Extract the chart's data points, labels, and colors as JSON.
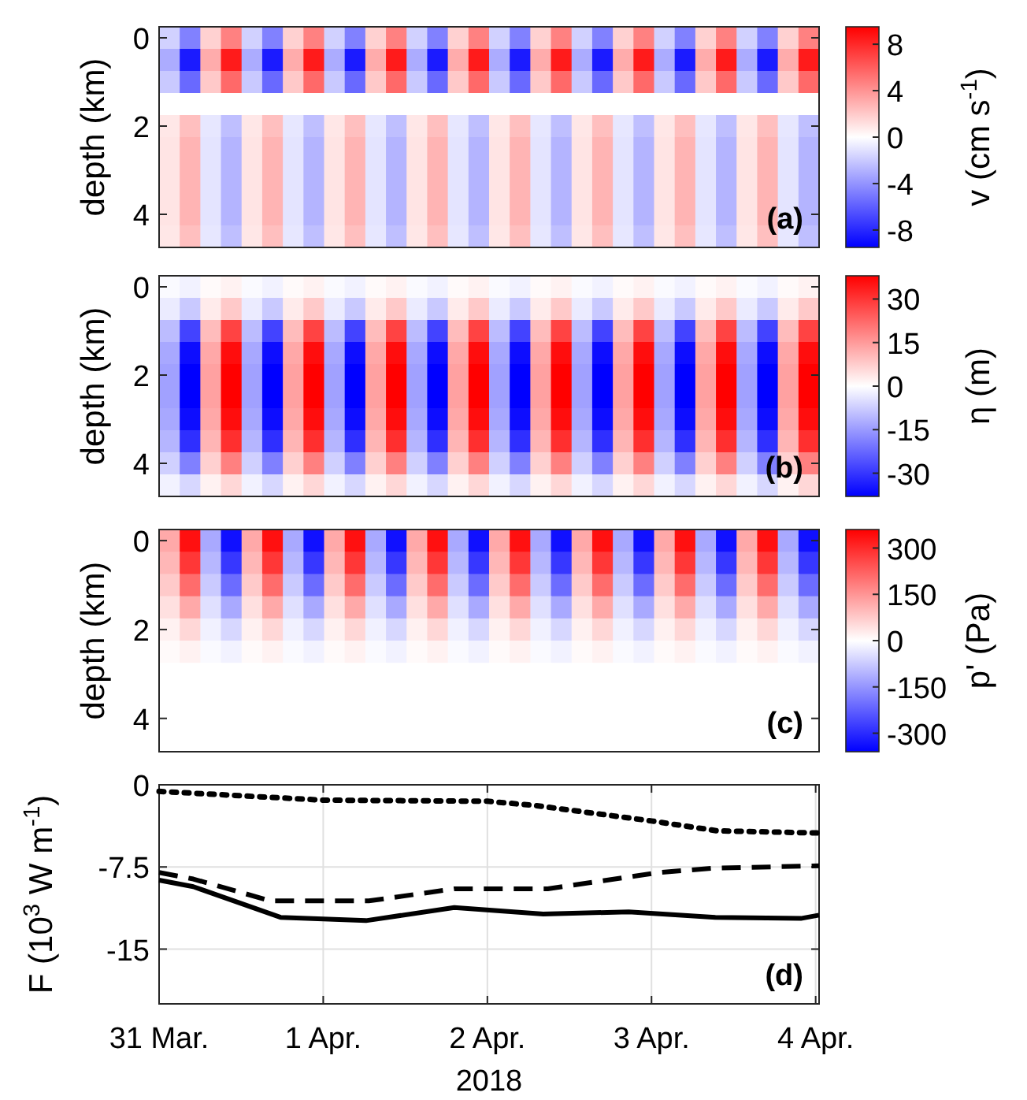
{
  "chart_data": [
    {
      "type": "heatmap",
      "ylabel": "depth (km)",
      "clabel": "v (cm s$^{-1}$)",
      "annotations": [
        "(a)"
      ],
      "categories": [
        null,
        null,
        null,
        null,
        null,
        null,
        null,
        null,
        null,
        null,
        null,
        null,
        null,
        null,
        null,
        null,
        null,
        null,
        null,
        null,
        null,
        null,
        null,
        null,
        null,
        null,
        null,
        null,
        null,
        null,
        null,
        null
      ],
      "y_categories": [
        "0",
        null,
        null,
        null,
        "2",
        null,
        null,
        null,
        "4",
        null
      ],
      "clim": [
        -9.5,
        9.5
      ],
      "cticks": [
        -8,
        -4,
        0,
        4,
        8
      ],
      "colors": [
        "#0000ff",
        "#ffffff",
        "#ff0000"
      ],
      "cells": [
        [
          -1.7,
          -4.7,
          1.7,
          4.7,
          -1.7,
          -4.7,
          1.7,
          4.7,
          -1.7,
          -4.7,
          1.7,
          4.7,
          -1.7,
          -4.7,
          1.7,
          4.7,
          -1.7,
          -4.7,
          1.7,
          4.7,
          -1.7,
          -4.7,
          1.7,
          4.7,
          -1.7,
          -4.7,
          1.7,
          4.7,
          -1.7,
          -4.7,
          1.7,
          4.7
        ],
        [
          -3.1,
          -8.5,
          3.1,
          8.5,
          -3.1,
          -8.5,
          3.1,
          8.5,
          -3.1,
          -8.5,
          3.1,
          8.5,
          -3.1,
          -8.5,
          3.1,
          8.5,
          -3.1,
          -8.5,
          3.1,
          8.5,
          -3.1,
          -8.5,
          3.1,
          8.5,
          -3.1,
          -8.5,
          3.1,
          8.5,
          -3.1,
          -8.5,
          3.1,
          8.5
        ],
        [
          -2,
          -5.6,
          2,
          5.6,
          -2,
          -5.6,
          2,
          5.6,
          -2,
          -5.6,
          2,
          5.6,
          -2,
          -5.6,
          2,
          5.6,
          -2,
          -5.6,
          2,
          5.6,
          -2,
          -5.6,
          2,
          5.6,
          -2,
          -5.6,
          2,
          5.6,
          -2,
          -5.6,
          2,
          5.6
        ],
        [
          0,
          0,
          0,
          0,
          0,
          0,
          0,
          0,
          0,
          0,
          0,
          0,
          0,
          0,
          0,
          0,
          0,
          0,
          0,
          0,
          0,
          0,
          0,
          0,
          0,
          0,
          0,
          0,
          0,
          0,
          0,
          0
        ],
        [
          0.9,
          2.4,
          -0.9,
          -2.4,
          0.9,
          2.4,
          -0.9,
          -2.4,
          0.9,
          2.4,
          -0.9,
          -2.4,
          0.9,
          2.4,
          -0.9,
          -2.4,
          0.9,
          2.4,
          -0.9,
          -2.4,
          0.9,
          2.4,
          -0.9,
          -2.4,
          0.9,
          2.4,
          -0.9,
          -2.4,
          0.9,
          2.4,
          -0.9,
          -2.4
        ],
        [
          1,
          2.8,
          -1,
          -2.8,
          1,
          2.8,
          -1,
          -2.8,
          1,
          2.8,
          -1,
          -2.8,
          1,
          2.8,
          -1,
          -2.8,
          1,
          2.8,
          -1,
          -2.8,
          1,
          2.8,
          -1,
          -2.8,
          1,
          2.8,
          -1,
          -2.8,
          1,
          2.8,
          -1,
          -2.8
        ],
        [
          1,
          2.8,
          -1,
          -2.8,
          1,
          2.8,
          -1,
          -2.8,
          1,
          2.8,
          -1,
          -2.8,
          1,
          2.8,
          -1,
          -2.8,
          1,
          2.8,
          -1,
          -2.8,
          1,
          2.8,
          -1,
          -2.8,
          1,
          2.8,
          -1,
          -2.8,
          1,
          2.8,
          -1,
          -2.8
        ],
        [
          1,
          2.8,
          -1,
          -2.8,
          1,
          2.8,
          -1,
          -2.8,
          1,
          2.8,
          -1,
          -2.8,
          1,
          2.8,
          -1,
          -2.8,
          1,
          2.8,
          -1,
          -2.8,
          1,
          2.8,
          -1,
          -2.8,
          1,
          2.8,
          -1,
          -2.8,
          1,
          2.8,
          -1,
          -2.8
        ],
        [
          1,
          2.8,
          -1,
          -2.8,
          1,
          2.8,
          -1,
          -2.8,
          1,
          2.8,
          -1,
          -2.8,
          1,
          2.8,
          -1,
          -2.8,
          1,
          2.8,
          -1,
          -2.8,
          1,
          2.8,
          -1,
          -2.8,
          1,
          2.8,
          -1,
          -2.8,
          1,
          2.8,
          -1,
          -2.8
        ],
        [
          0.9,
          2.4,
          -0.9,
          -2.4,
          0.9,
          2.4,
          -0.9,
          -2.4,
          0.9,
          2.4,
          -0.9,
          -2.4,
          0.9,
          2.4,
          -0.9,
          -2.4,
          0.9,
          2.4,
          -0.9,
          -2.4,
          0.9,
          2.4,
          -0.9,
          -2.4,
          0.9,
          2.4,
          -0.9,
          -2.4,
          0.9,
          2.4,
          -0.9,
          -2.4
        ]
      ]
    },
    {
      "type": "heatmap",
      "ylabel": "depth (km)",
      "clabel": "η (m)",
      "annotations": [
        "(b)"
      ],
      "categories": [
        null,
        null,
        null,
        null,
        null,
        null,
        null,
        null,
        null,
        null,
        null,
        null,
        null,
        null,
        null,
        null,
        null,
        null,
        null,
        null,
        null,
        null,
        null,
        null,
        null,
        null,
        null,
        null,
        null,
        null,
        null,
        null
      ],
      "y_categories": [
        "0",
        null,
        null,
        null,
        "2",
        null,
        null,
        null,
        "4",
        null
      ],
      "clim": [
        -38,
        38
      ],
      "cticks": [
        -30,
        -15,
        0,
        15,
        30
      ],
      "colors": [
        "#0000ff",
        "#ffffff",
        "#ff0000"
      ],
      "cells": [
        [
          -0.7,
          -1.9,
          0.7,
          1.9,
          -0.7,
          -1.9,
          0.7,
          1.9,
          -0.7,
          -1.9,
          0.7,
          1.9,
          -0.7,
          -1.9,
          0.7,
          1.9,
          -0.7,
          -1.9,
          0.7,
          1.9,
          -0.7,
          -1.9,
          0.7,
          1.9,
          -0.7,
          -1.9,
          0.7,
          1.9,
          -0.7,
          -1.9,
          0.7,
          1.9
        ],
        [
          -3,
          -8,
          3,
          8,
          -3,
          -8,
          3,
          8,
          -3,
          -8,
          3,
          8,
          -3,
          -8,
          3,
          8,
          -3,
          -8,
          3,
          8,
          -3,
          -8,
          3,
          8,
          -3,
          -8,
          3,
          8,
          -3,
          -8,
          3,
          8
        ],
        [
          -10,
          -28,
          10,
          28,
          -10,
          -28,
          10,
          28,
          -10,
          -28,
          10,
          28,
          -10,
          -28,
          10,
          28,
          -10,
          -28,
          10,
          28,
          -10,
          -28,
          10,
          28,
          -10,
          -28,
          10,
          28,
          -10,
          -28,
          10,
          28
        ],
        [
          -13,
          -36,
          13,
          36,
          -13,
          -36,
          13,
          36,
          -13,
          -36,
          13,
          36,
          -13,
          -36,
          13,
          36,
          -13,
          -36,
          13,
          36,
          -13,
          -36,
          13,
          36,
          -13,
          -36,
          13,
          36,
          -13,
          -36,
          13,
          36
        ],
        [
          -14,
          -38,
          14,
          38,
          -14,
          -38,
          14,
          38,
          -14,
          -38,
          14,
          38,
          -14,
          -38,
          14,
          38,
          -14,
          -38,
          14,
          38,
          -14,
          -38,
          14,
          38,
          -14,
          -38,
          14,
          38,
          -14,
          -38,
          14,
          38
        ],
        [
          -14,
          -38,
          14,
          38,
          -14,
          -38,
          14,
          38,
          -14,
          -38,
          14,
          38,
          -14,
          -38,
          14,
          38,
          -14,
          -38,
          14,
          38,
          -14,
          -38,
          14,
          38,
          -14,
          -38,
          14,
          38,
          -14,
          -38,
          14,
          38
        ],
        [
          -13,
          -36,
          13,
          36,
          -13,
          -36,
          13,
          36,
          -13,
          -36,
          13,
          36,
          -13,
          -36,
          13,
          36,
          -13,
          -36,
          13,
          36,
          -13,
          -36,
          13,
          36,
          -13,
          -36,
          13,
          36,
          -13,
          -36,
          13,
          36
        ],
        [
          -11,
          -31,
          11,
          31,
          -11,
          -31,
          11,
          31,
          -11,
          -31,
          11,
          31,
          -11,
          -31,
          11,
          31,
          -11,
          -31,
          11,
          31,
          -11,
          -31,
          11,
          31,
          -11,
          -31,
          11,
          31,
          -11,
          -31,
          11,
          31
        ],
        [
          -7,
          -19,
          7,
          19,
          -7,
          -19,
          7,
          19,
          -7,
          -19,
          7,
          19,
          -7,
          -19,
          7,
          19,
          -7,
          -19,
          7,
          19,
          -7,
          -19,
          7,
          19,
          -7,
          -19,
          7,
          19,
          -7,
          -19,
          7,
          19
        ],
        [
          -2,
          -6,
          2,
          6,
          -2,
          -6,
          2,
          6,
          -2,
          -6,
          2,
          6,
          -2,
          -6,
          2,
          6,
          -2,
          -6,
          2,
          6,
          -2,
          -6,
          2,
          6,
          -2,
          -6,
          2,
          6,
          -2,
          -6,
          2,
          6
        ]
      ]
    },
    {
      "type": "heatmap",
      "ylabel": "depth (km)",
      "clabel": "p' (Pa)",
      "annotations": [
        "(c)"
      ],
      "categories": [
        null,
        null,
        null,
        null,
        null,
        null,
        null,
        null,
        null,
        null,
        null,
        null,
        null,
        null,
        null,
        null,
        null,
        null,
        null,
        null,
        null,
        null,
        null,
        null,
        null,
        null,
        null,
        null,
        null,
        null,
        null,
        null
      ],
      "y_categories": [
        "0",
        null,
        null,
        null,
        "2",
        null,
        null,
        null,
        "4",
        null
      ],
      "clim": [
        -360,
        360
      ],
      "cticks": [
        -300,
        -150,
        0,
        150,
        300
      ],
      "colors": [
        "#0000ff",
        "#ffffff",
        "#ff0000"
      ],
      "cells": [
        [
          122,
          338,
          -122,
          -338,
          122,
          338,
          -122,
          -338,
          122,
          338,
          -122,
          -338,
          122,
          338,
          -122,
          -338,
          122,
          338,
          -122,
          -338,
          122,
          338,
          -122,
          -338,
          122,
          338,
          -122,
          -338,
          122,
          338,
          -122,
          -338
        ],
        [
          102,
          282,
          -102,
          -282,
          102,
          282,
          -102,
          -282,
          102,
          282,
          -102,
          -282,
          102,
          282,
          -102,
          -282,
          102,
          282,
          -102,
          -282,
          102,
          282,
          -102,
          -282,
          102,
          282,
          -102,
          -282,
          102,
          282,
          -102,
          -282
        ],
        [
          75,
          207,
          -75,
          -207,
          75,
          207,
          -75,
          -207,
          75,
          207,
          -75,
          -207,
          75,
          207,
          -75,
          -207,
          75,
          207,
          -75,
          -207,
          75,
          207,
          -75,
          -207,
          75,
          207,
          -75,
          -207,
          75,
          207,
          -75,
          -207
        ],
        [
          44,
          122,
          -44,
          -122,
          44,
          122,
          -44,
          -122,
          44,
          122,
          -44,
          -122,
          44,
          122,
          -44,
          -122,
          44,
          122,
          -44,
          -122,
          44,
          122,
          -44,
          -122,
          44,
          122,
          -44,
          -122,
          44,
          122,
          -44,
          -122
        ],
        [
          20,
          56,
          -20,
          -56,
          20,
          56,
          -20,
          -56,
          20,
          56,
          -20,
          -56,
          20,
          56,
          -20,
          -56,
          20,
          56,
          -20,
          -56,
          20,
          56,
          -20,
          -56,
          20,
          56,
          -20,
          -56,
          20,
          56,
          -20,
          -56
        ],
        [
          7,
          19,
          -7,
          -19,
          7,
          19,
          -7,
          -19,
          7,
          19,
          -7,
          -19,
          7,
          19,
          -7,
          -19,
          7,
          19,
          -7,
          -19,
          7,
          19,
          -7,
          -19,
          7,
          19,
          -7,
          -19,
          7,
          19,
          -7,
          -19
        ],
        [
          0,
          0,
          0,
          0,
          0,
          0,
          0,
          0,
          0,
          0,
          0,
          0,
          0,
          0,
          0,
          0,
          0,
          0,
          0,
          0,
          0,
          0,
          0,
          0,
          0,
          0,
          0,
          0,
          0,
          0,
          0,
          0
        ],
        [
          0,
          0,
          0,
          0,
          0,
          0,
          0,
          0,
          0,
          0,
          0,
          0,
          0,
          0,
          0,
          0,
          0,
          0,
          0,
          0,
          0,
          0,
          0,
          0,
          0,
          0,
          0,
          0,
          0,
          0,
          0,
          0
        ],
        [
          0,
          0,
          0,
          0,
          0,
          0,
          0,
          0,
          0,
          0,
          0,
          0,
          0,
          0,
          0,
          0,
          0,
          0,
          0,
          0,
          0,
          0,
          0,
          0,
          0,
          0,
          0,
          0,
          0,
          0,
          0,
          0
        ],
        [
          0,
          0,
          0,
          0,
          0,
          0,
          0,
          0,
          0,
          0,
          0,
          0,
          0,
          0,
          0,
          0,
          0,
          0,
          0,
          0,
          0,
          0,
          0,
          0,
          0,
          0,
          0,
          0,
          0,
          0,
          0,
          0
        ]
      ]
    },
    {
      "type": "line",
      "ylabel": "F (10$^{3}$ W m$^{-1}$)",
      "xlabel": "2018",
      "annotations": [
        "(d)"
      ],
      "grid": true,
      "xlim": [
        "2018-03-31T00:00",
        "2018-04-04T00:30"
      ],
      "xticks": [
        {
          "value": "2018-03-31",
          "label": "31 Mar."
        },
        {
          "value": "2018-04-01",
          "label": "1 Apr."
        },
        {
          "value": "2018-04-02",
          "label": "2 Apr."
        },
        {
          "value": "2018-04-03",
          "label": "3 Apr."
        },
        {
          "value": "2018-04-04",
          "label": "4 Apr."
        }
      ],
      "ylim": [
        -20,
        0
      ],
      "yticks": [
        0,
        -7.5,
        -15
      ],
      "series": [
        {
          "color": "#000000",
          "line_style": "dotted",
          "x": [
            "2018-03-31T00:00",
            "2018-04-01T00:00",
            "2018-04-02T00:00",
            "2018-04-02T07:10",
            "2018-04-03T00:00",
            "2018-04-03T09:35",
            "2018-04-04T00:30"
          ],
          "values": [
            -0.6,
            -1.4,
            -1.5,
            -1.9,
            -3.3,
            -4.2,
            -4.4
          ]
        },
        {
          "color": "#000000",
          "line_style": "dashed",
          "x": [
            "2018-03-31T00:00",
            "2018-03-31T05:00",
            "2018-03-31T16:20",
            "2018-04-01T06:40",
            "2018-04-01T19:10",
            "2018-04-02T08:50",
            "2018-04-03T01:10",
            "2018-04-03T09:20",
            "2018-04-04T00:30"
          ],
          "values": [
            -8.0,
            -8.6,
            -10.6,
            -10.6,
            -9.5,
            -9.5,
            -8.0,
            -7.6,
            -7.4
          ]
        },
        {
          "color": "#000000",
          "line_style": "solid",
          "x": [
            "2018-03-31T00:00",
            "2018-03-31T05:00",
            "2018-03-31T17:45",
            "2018-04-01T06:15",
            "2018-04-01T19:10",
            "2018-04-02T08:10",
            "2018-04-02T20:40",
            "2018-04-03T09:20",
            "2018-04-03T21:50",
            "2018-04-04T00:30"
          ],
          "values": [
            -8.7,
            -9.3,
            -12.1,
            -12.4,
            -11.2,
            -11.8,
            -11.6,
            -12.1,
            -12.2,
            -11.9
          ]
        }
      ]
    }
  ]
}
